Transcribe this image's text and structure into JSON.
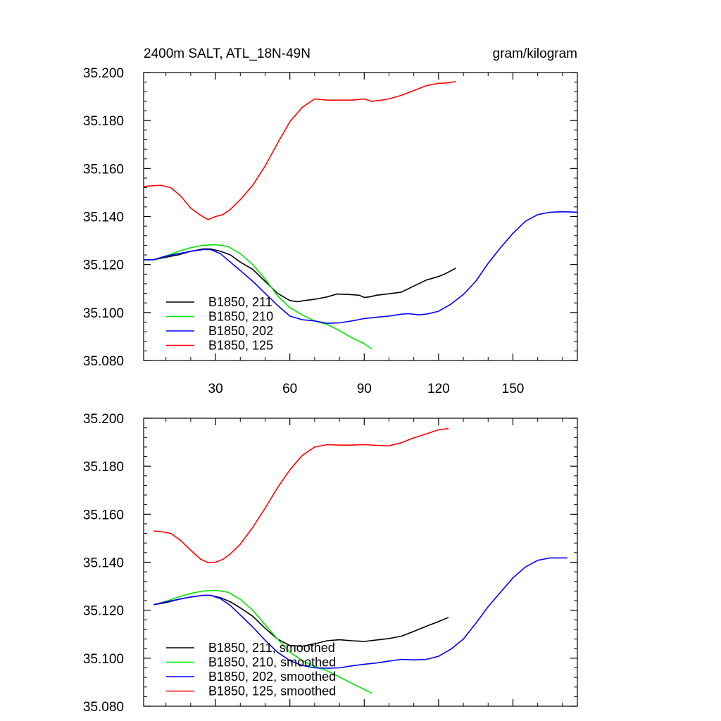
{
  "header": {
    "title_left": "2400m SALT, ATL_18N-49N",
    "title_right": "gram/kilogram"
  },
  "colors": {
    "B1850_211": "#000000",
    "B1850_210": "#00e600",
    "B1850_202": "#0000ff",
    "B1850_125": "#ff0000"
  },
  "chart_data": [
    {
      "type": "line",
      "title": "2400m SALT, ATL_18N-49N",
      "units": "gram/kilogram",
      "xlabel": "",
      "ylabel": "",
      "xlim": [
        1,
        176
      ],
      "ylim": [
        35.08,
        35.2
      ],
      "x_ticks": [
        30,
        60,
        90,
        120,
        150
      ],
      "x_tick_labels": [
        "30",
        "60",
        "90",
        "120",
        "150"
      ],
      "y_ticks": [
        35.08,
        35.1,
        35.12,
        35.14,
        35.16,
        35.18,
        35.2
      ],
      "y_tick_labels": [
        "35.080",
        "35.100",
        "35.120",
        "35.140",
        "35.160",
        "35.180",
        "35.200"
      ],
      "legend_position": "bottom-left",
      "series": [
        {
          "name": "B1850, 211",
          "color": "#000000",
          "x": [
            1,
            5,
            10,
            15,
            20,
            25,
            28,
            32,
            36,
            40,
            45,
            50,
            55,
            60,
            63,
            66,
            70,
            75,
            79,
            84,
            88,
            90,
            92,
            95,
            100,
            105,
            110,
            115,
            120,
            123,
            127
          ],
          "y": [
            35.122,
            35.122,
            35.123,
            35.124,
            35.1255,
            35.1265,
            35.1265,
            35.1255,
            35.124,
            35.121,
            35.118,
            35.113,
            35.108,
            35.105,
            35.1045,
            35.105,
            35.1055,
            35.1065,
            35.1077,
            35.1075,
            35.1072,
            35.1063,
            35.1065,
            35.1072,
            35.1078,
            35.1085,
            35.111,
            35.1135,
            35.115,
            35.1163,
            35.1185
          ]
        },
        {
          "name": "B1850, 210",
          "color": "#00e600",
          "x": [
            1,
            5,
            10,
            15,
            20,
            25,
            30,
            35,
            40,
            45,
            50,
            55,
            60,
            65,
            70,
            75,
            80,
            85,
            90,
            93
          ],
          "y": [
            35.122,
            35.122,
            35.1235,
            35.1255,
            35.127,
            35.128,
            35.1283,
            35.1275,
            35.1245,
            35.12,
            35.114,
            35.107,
            35.102,
            35.099,
            35.0965,
            35.095,
            35.0925,
            35.0895,
            35.087,
            35.0848
          ]
        },
        {
          "name": "B1850, 202",
          "color": "#0000ff",
          "x": [
            1,
            5,
            10,
            15,
            20,
            25,
            28,
            32,
            36,
            40,
            45,
            50,
            55,
            60,
            65,
            70,
            75,
            80,
            85,
            90,
            95,
            100,
            105,
            108,
            112,
            115,
            120,
            125,
            130,
            135,
            140,
            145,
            150,
            155,
            160,
            165,
            170,
            176
          ],
          "y": [
            35.122,
            35.122,
            35.1235,
            35.1245,
            35.1255,
            35.1262,
            35.1262,
            35.1245,
            35.121,
            35.1175,
            35.113,
            35.108,
            35.103,
            35.0985,
            35.097,
            35.0965,
            35.0955,
            35.0957,
            35.0965,
            35.0975,
            35.098,
            35.0985,
            35.0993,
            35.0995,
            35.099,
            35.0993,
            35.1005,
            35.1035,
            35.1075,
            35.113,
            35.1205,
            35.127,
            35.133,
            35.138,
            35.1408,
            35.1418,
            35.142,
            35.1418
          ]
        },
        {
          "name": "B1850, 125",
          "color": "#ff0000",
          "x": [
            1,
            4,
            8,
            12,
            16,
            20,
            24,
            27,
            30,
            33,
            36,
            40,
            45,
            50,
            55,
            60,
            65,
            70,
            75,
            80,
            85,
            90,
            93,
            97,
            100,
            105,
            110,
            115,
            120,
            124,
            127
          ],
          "y": [
            35.1525,
            35.1528,
            35.153,
            35.152,
            35.1485,
            35.1435,
            35.1405,
            35.1387,
            35.14,
            35.1408,
            35.143,
            35.147,
            35.153,
            35.161,
            35.1705,
            35.1795,
            35.1855,
            35.189,
            35.1885,
            35.1885,
            35.1885,
            35.189,
            35.188,
            35.1885,
            35.189,
            35.1905,
            35.1925,
            35.1945,
            35.1955,
            35.1957,
            35.1963
          ]
        }
      ]
    },
    {
      "type": "line",
      "title": "",
      "xlabel": "",
      "ylabel": "",
      "xlim": [
        1,
        176
      ],
      "ylim": [
        35.08,
        35.2
      ],
      "x_ticks": [
        30,
        60,
        90,
        120,
        150
      ],
      "x_tick_labels": [],
      "y_ticks": [
        35.08,
        35.1,
        35.12,
        35.14,
        35.16,
        35.18,
        35.2
      ],
      "y_tick_labels": [
        "35.080",
        "35.100",
        "35.120",
        "35.140",
        "35.160",
        "35.180",
        "35.200"
      ],
      "legend_position": "bottom-left",
      "series": [
        {
          "name": "B1850, 211, smoothed",
          "color": "#000000",
          "x": [
            5,
            10,
            15,
            20,
            25,
            28,
            32,
            36,
            40,
            45,
            50,
            55,
            60,
            65,
            70,
            75,
            80,
            85,
            90,
            95,
            100,
            105,
            110,
            115,
            120,
            124
          ],
          "y": [
            35.1223,
            35.1232,
            35.1245,
            35.1255,
            35.1262,
            35.1262,
            35.1252,
            35.1235,
            35.121,
            35.1175,
            35.1125,
            35.108,
            35.1053,
            35.105,
            35.106,
            35.1073,
            35.1077,
            35.1073,
            35.107,
            35.1076,
            35.1082,
            35.1092,
            35.1112,
            35.1133,
            35.1153,
            35.117
          ]
        },
        {
          "name": "B1850, 210, smoothed",
          "color": "#00e600",
          "x": [
            5,
            10,
            15,
            20,
            25,
            30,
            35,
            40,
            45,
            50,
            55,
            60,
            65,
            70,
            75,
            80,
            85,
            90,
            93
          ],
          "y": [
            35.1223,
            35.1237,
            35.1255,
            35.127,
            35.128,
            35.1283,
            35.1275,
            35.1245,
            35.12,
            35.114,
            35.108,
            35.1025,
            35.099,
            35.0965,
            35.0948,
            35.0922,
            35.0895,
            35.087,
            35.0855
          ]
        },
        {
          "name": "B1850, 202, smoothed",
          "color": "#0000ff",
          "x": [
            5,
            10,
            15,
            20,
            25,
            28,
            32,
            36,
            40,
            45,
            50,
            55,
            60,
            65,
            70,
            75,
            80,
            85,
            90,
            95,
            100,
            105,
            110,
            115,
            120,
            125,
            130,
            135,
            140,
            145,
            150,
            155,
            160,
            165,
            168,
            172
          ],
          "y": [
            35.1223,
            35.1235,
            35.1245,
            35.1255,
            35.1262,
            35.1262,
            35.1248,
            35.122,
            35.118,
            35.113,
            35.1075,
            35.1025,
            35.099,
            35.097,
            35.096,
            35.0958,
            35.096,
            35.0968,
            35.0975,
            35.098,
            35.0988,
            35.0995,
            35.0993,
            35.0995,
            35.1008,
            35.1038,
            35.108,
            35.1145,
            35.1215,
            35.1275,
            35.1335,
            35.138,
            35.1408,
            35.1418,
            35.1418,
            35.1418
          ]
        },
        {
          "name": "B1850, 125, smoothed",
          "color": "#ff0000",
          "x": [
            5,
            8,
            12,
            16,
            20,
            24,
            27,
            30,
            33,
            36,
            40,
            45,
            50,
            55,
            60,
            65,
            70,
            75,
            80,
            85,
            90,
            95,
            100,
            105,
            110,
            115,
            120,
            124
          ],
          "y": [
            35.153,
            35.1528,
            35.152,
            35.149,
            35.145,
            35.1413,
            35.1398,
            35.14,
            35.1412,
            35.1435,
            35.1475,
            35.1545,
            35.1625,
            35.171,
            35.1785,
            35.1845,
            35.188,
            35.189,
            35.1888,
            35.1888,
            35.189,
            35.1887,
            35.1885,
            35.1898,
            35.1918,
            35.1935,
            35.1952,
            35.1957
          ]
        }
      ]
    }
  ]
}
